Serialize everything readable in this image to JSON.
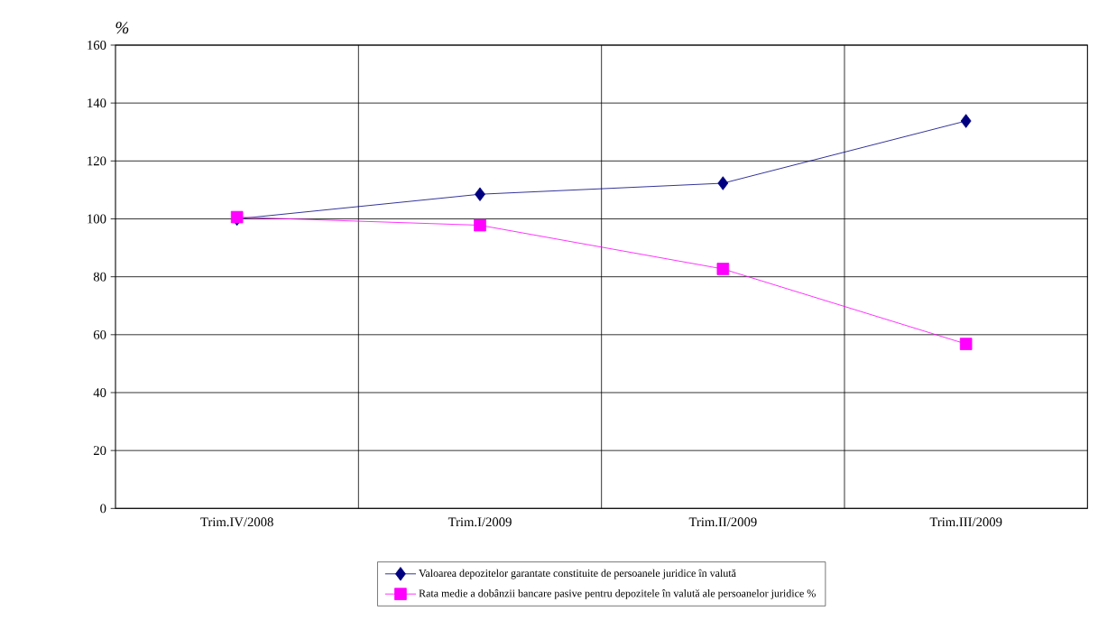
{
  "chart_data": {
    "type": "line",
    "ylabel": "%",
    "categories": [
      "Trim.IV/2008",
      "Trim.I/2009",
      "Trim.II/2009",
      "Trim.III/2009"
    ],
    "series": [
      {
        "name": "Valoarea depozitelor garantate constituite de persoanele juridice în valută",
        "color": "#000080",
        "marker": "diamond",
        "values": [
          100,
          108.5,
          112.3,
          133.8
        ]
      },
      {
        "name": "Rata medie a dobânzii bancare pasive pentru depozitele în valută ale persoanelor juridice %",
        "color": "#ff00ff",
        "marker": "square",
        "values": [
          100.6,
          97.8,
          82.7,
          56.8
        ]
      }
    ],
    "ylim": [
      0,
      160
    ],
    "yticks": [
      0,
      20,
      40,
      60,
      80,
      100,
      120,
      140,
      160
    ],
    "grid": true,
    "legend": "bottom"
  }
}
